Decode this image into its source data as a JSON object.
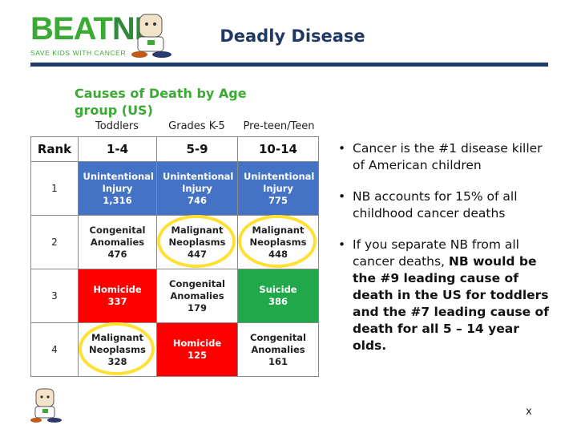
{
  "header": {
    "logo": {
      "brand_a": "BEAT",
      "brand_b": "NB",
      "tagline": "SAVE KIDS WITH CANCER"
    },
    "title": "Deadly Disease"
  },
  "table": {
    "title": "Causes of Death by Age group (US)",
    "groups": [
      "Toddlers",
      "Grades K-5",
      "Pre-teen/Teen"
    ],
    "columns": [
      "Rank",
      "1-4",
      "5-9",
      "10-14"
    ],
    "rows": [
      {
        "rank": "1",
        "cells": [
          {
            "cause": "Unintentional Injury",
            "deaths": "1,316",
            "fill": "#4472c4"
          },
          {
            "cause": "Unintentional Injury",
            "deaths": "746",
            "fill": "#4472c4"
          },
          {
            "cause": "Unintentional Injury",
            "deaths": "775",
            "fill": "#4472c4"
          }
        ]
      },
      {
        "rank": "2",
        "cells": [
          {
            "cause": "Congenital Anomalies",
            "deaths": "476",
            "fill": "#ffffff"
          },
          {
            "cause": "Malignant Neoplasms",
            "deaths": "447",
            "fill": "#ffffff",
            "circled": true
          },
          {
            "cause": "Malignant Neoplasms",
            "deaths": "448",
            "fill": "#ffffff",
            "circled": true
          }
        ]
      },
      {
        "rank": "3",
        "cells": [
          {
            "cause": "Homicide",
            "deaths": "337",
            "fill": "#ff0000"
          },
          {
            "cause": "Congenital Anomalies",
            "deaths": "179",
            "fill": "#ffffff"
          },
          {
            "cause": "Suicide",
            "deaths": "386",
            "fill": "#21a84a"
          }
        ]
      },
      {
        "rank": "4",
        "cells": [
          {
            "cause": "Malignant Neoplasms",
            "deaths": "328",
            "fill": "#ffffff",
            "circled": true
          },
          {
            "cause": "Homicide",
            "deaths": "125",
            "fill": "#ff0000"
          },
          {
            "cause": "Congenital Anomalies",
            "deaths": "161",
            "fill": "#ffffff"
          }
        ]
      }
    ]
  },
  "bullets": [
    {
      "text": "Cancer is the #1 disease killer of American children"
    },
    {
      "text": "NB accounts for 15% of all childhood cancer deaths"
    },
    {
      "text": "If you separate NB from all cancer deaths, ",
      "bold": "NB would be the #9 leading cause of death in the US for toddlers and the #7 leading cause of death for all 5 – 14 year olds."
    }
  ],
  "footer": {
    "mark": "x"
  }
}
